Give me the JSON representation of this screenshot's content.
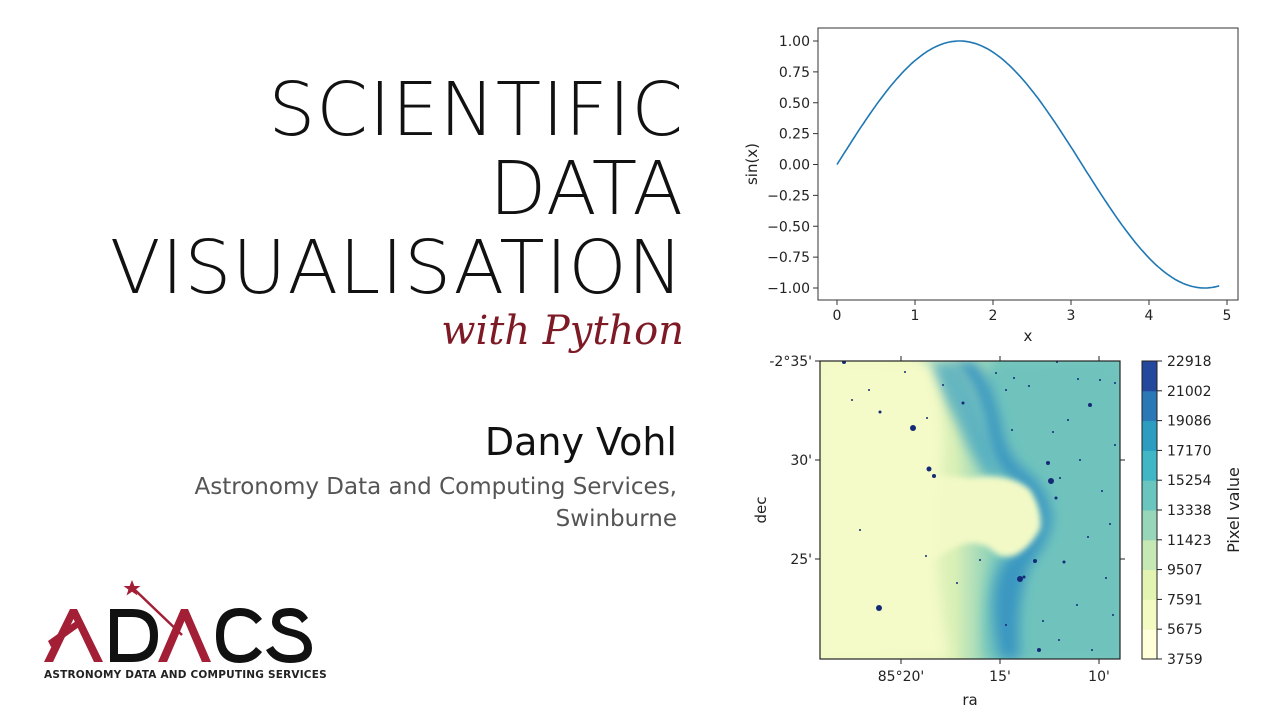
{
  "slide": {
    "title_lines": [
      "SCIENTIFIC",
      "DATA",
      "VISUALISATION"
    ],
    "subtitle": "with Python",
    "author": "Dany Vohl",
    "affiliation_lines": [
      "Astronomy Data and Computing Services,",
      "Swinburne"
    ],
    "logo": {
      "wordmark": "ADACS",
      "caption": "ASTRONOMY DATA AND COMPUTING SERVICES",
      "accent_color": "#a31f36"
    },
    "colors": {
      "title": "#111111",
      "subtitle": "#7d1a25",
      "affiliation": "#555555",
      "line": "#1f77b4"
    }
  },
  "chart_data": [
    {
      "type": "line",
      "title": "",
      "xlabel": "x",
      "ylabel": "sin(x)",
      "xlim": [
        -0.24,
        5.14
      ],
      "ylim": [
        -1.1,
        1.1
      ],
      "xticks": [
        "0",
        "1",
        "2",
        "3",
        "4",
        "5"
      ],
      "yticks": [
        "1.00",
        "0.75",
        "0.50",
        "0.25",
        "0.00",
        "−0.25",
        "−0.50",
        "−0.75",
        "−1.00"
      ],
      "grid": false,
      "series": [
        {
          "name": "sin(x)",
          "color": "#1f77b4",
          "x": [
            0,
            0.5,
            1.0,
            1.5708,
            2.0,
            2.5,
            3.0,
            3.5,
            4.0,
            4.5,
            4.7124,
            4.9
          ],
          "y": [
            0,
            0.479,
            0.841,
            1.0,
            0.909,
            0.598,
            0.141,
            -0.351,
            -0.757,
            -0.978,
            -1.0,
            -0.982
          ]
        }
      ]
    },
    {
      "type": "heatmap",
      "title": "",
      "description": "Horsehead Nebula image in sky coordinates with discrete YlGnBu colormap",
      "xlabel": "ra",
      "ylabel": "dec",
      "xticks": [
        "85°20'",
        "15'",
        "10'"
      ],
      "yticks": [
        "-2°35'",
        "30'",
        "25'"
      ],
      "colormap": "YlGnBu",
      "colorbar": {
        "label": "Pixel value",
        "ticks": [
          "22918",
          "21002",
          "19086",
          "17170",
          "15254",
          "13338",
          "11423",
          "9507",
          "7591",
          "5675",
          "3759"
        ],
        "min": 3759,
        "max": 22918,
        "bands": [
          "#ffffd9",
          "#f4fbc2",
          "#e3f4b2",
          "#c6e8b4",
          "#97d6b9",
          "#6ac5be",
          "#41b6c4",
          "#2c9dc0",
          "#2a79b6",
          "#24489c",
          "#152a77"
        ]
      }
    }
  ]
}
